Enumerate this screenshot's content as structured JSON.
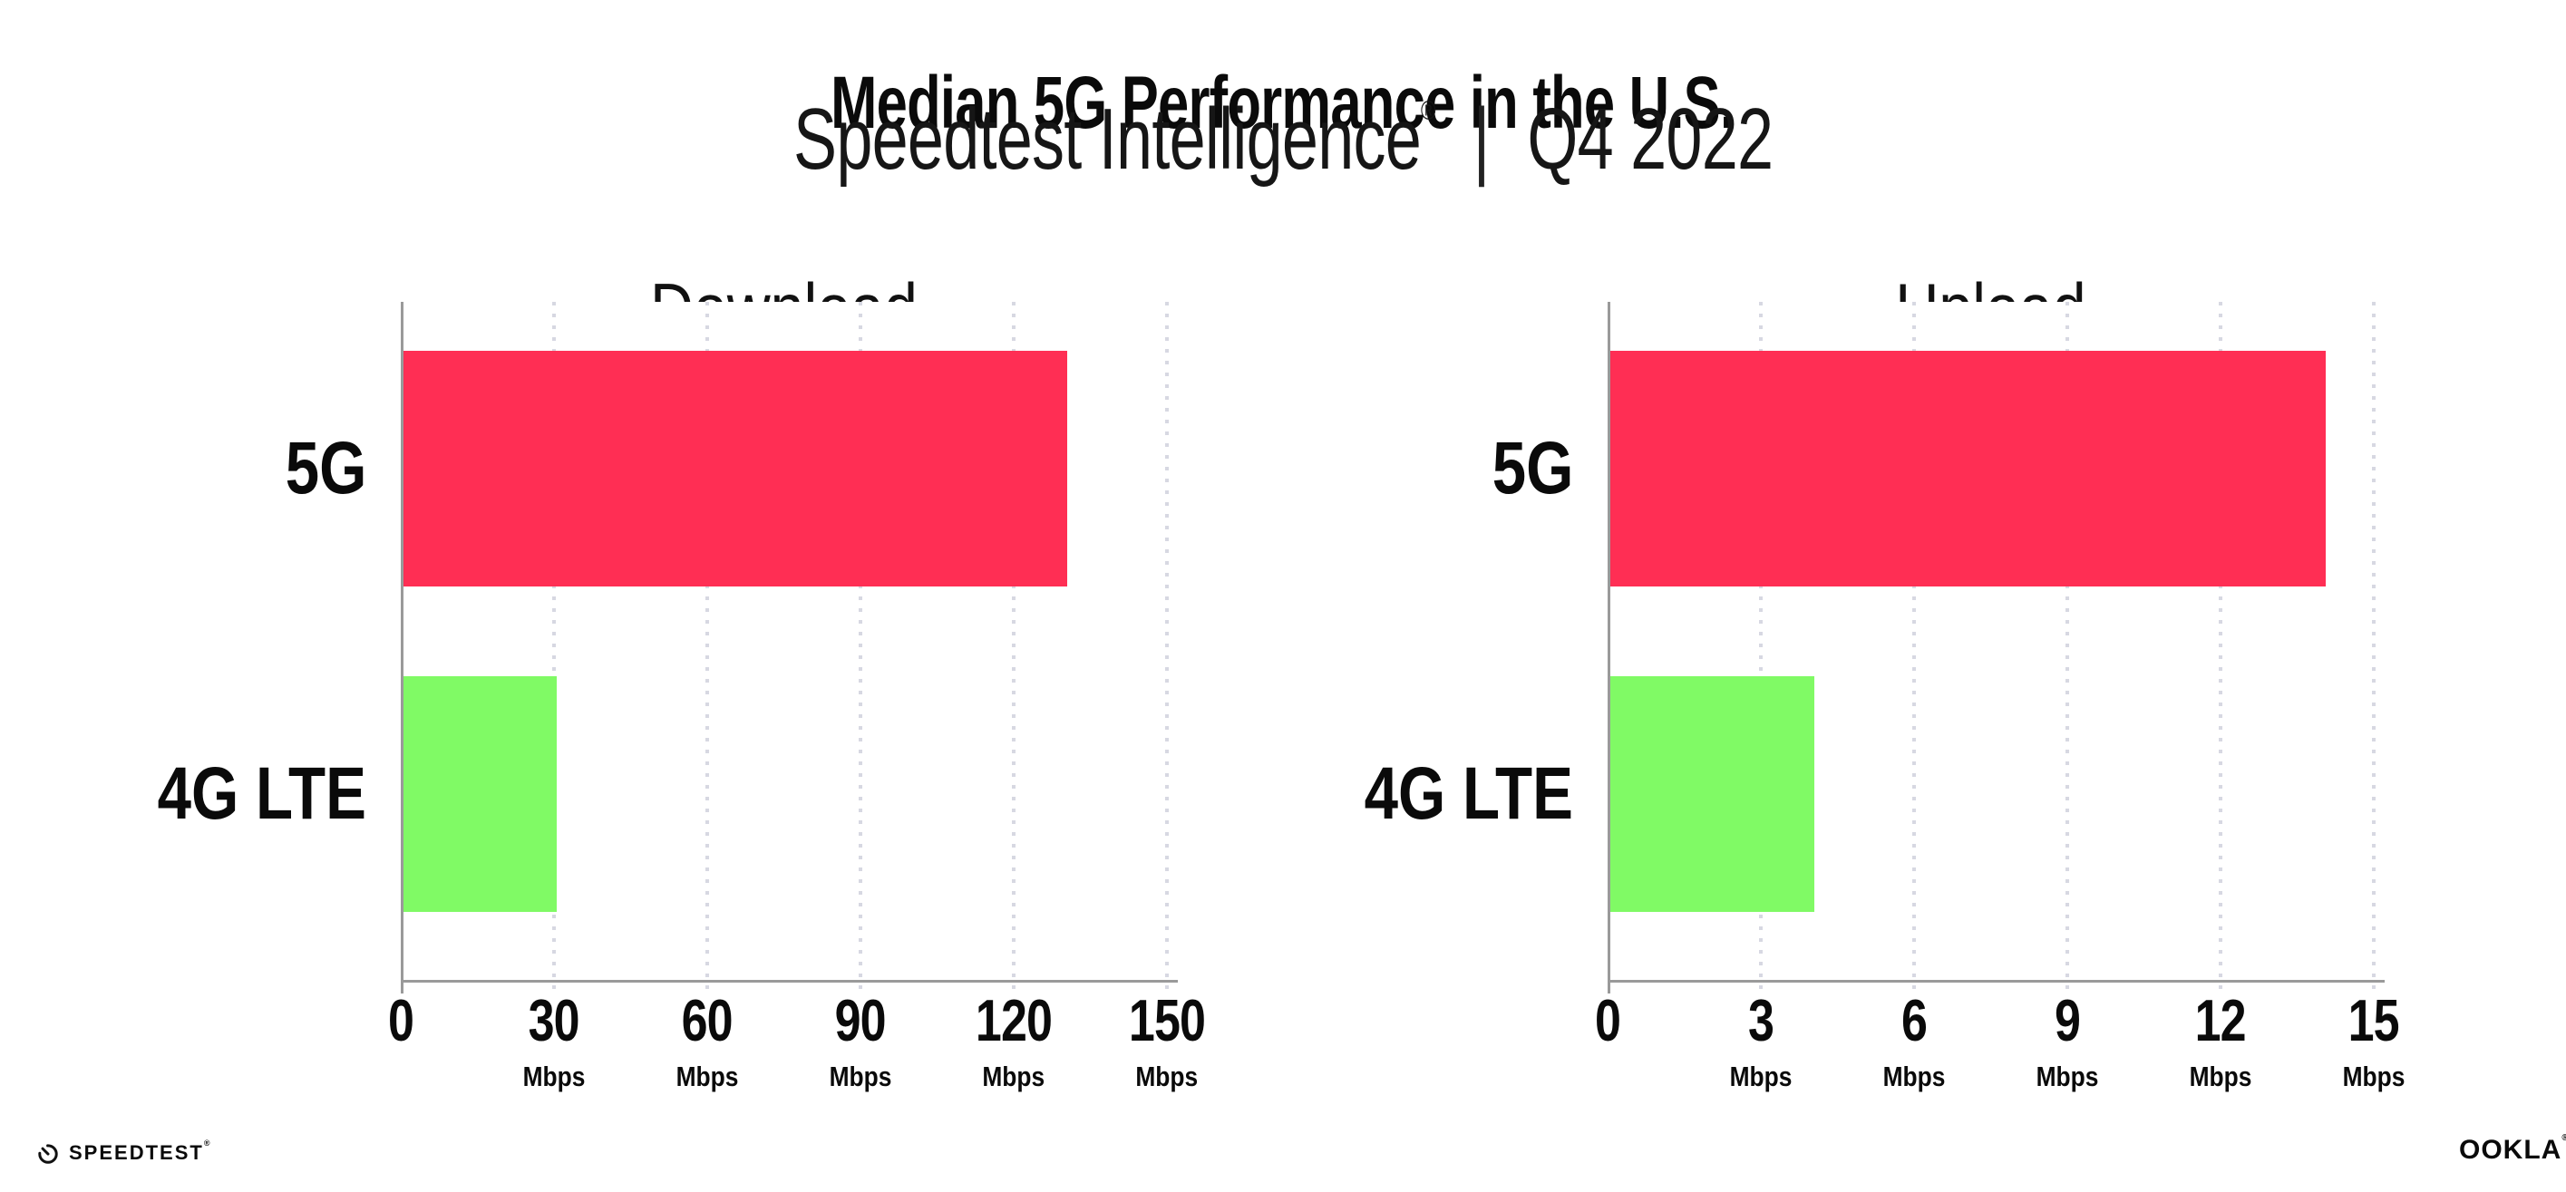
{
  "header": {
    "title": "Median 5G Performance in the U.S.",
    "subtitle_brand": "Speedtest Intelligence",
    "subtitle_reg_mark": "®",
    "subtitle_separator": "|",
    "subtitle_period": "Q4 2022"
  },
  "colors": {
    "bar_5g": "#FF2E54",
    "bar_4g_lte": "#80FA65",
    "axis_line": "#9A9A9A",
    "gridline": "#D7D8E2"
  },
  "chart_data": [
    {
      "type": "bar",
      "orientation": "horizontal",
      "title": "Download",
      "categories": [
        "5G",
        "4G LTE"
      ],
      "values": [
        130,
        30
      ],
      "unit": "Mbps",
      "xlim": [
        0,
        150
      ],
      "xticks": [
        0,
        30,
        60,
        90,
        120,
        150
      ],
      "series_colors": [
        "#FF2E54",
        "#80FA65"
      ],
      "grid": "vertical-dotted",
      "legend": "none"
    },
    {
      "type": "bar",
      "orientation": "horizontal",
      "title": "Upload",
      "categories": [
        "5G",
        "4G LTE"
      ],
      "values": [
        14,
        4
      ],
      "unit": "Mbps",
      "xlim": [
        0,
        15
      ],
      "xticks": [
        0,
        3,
        6,
        9,
        12,
        15
      ],
      "series_colors": [
        "#FF2E54",
        "#80FA65"
      ],
      "grid": "vertical-dotted",
      "legend": "none"
    }
  ],
  "footer": {
    "speedtest_logo_text": "SPEEDTEST",
    "speedtest_reg_mark": "®",
    "ookla_logo_text": "OOKLA",
    "ookla_reg_mark": "®"
  }
}
